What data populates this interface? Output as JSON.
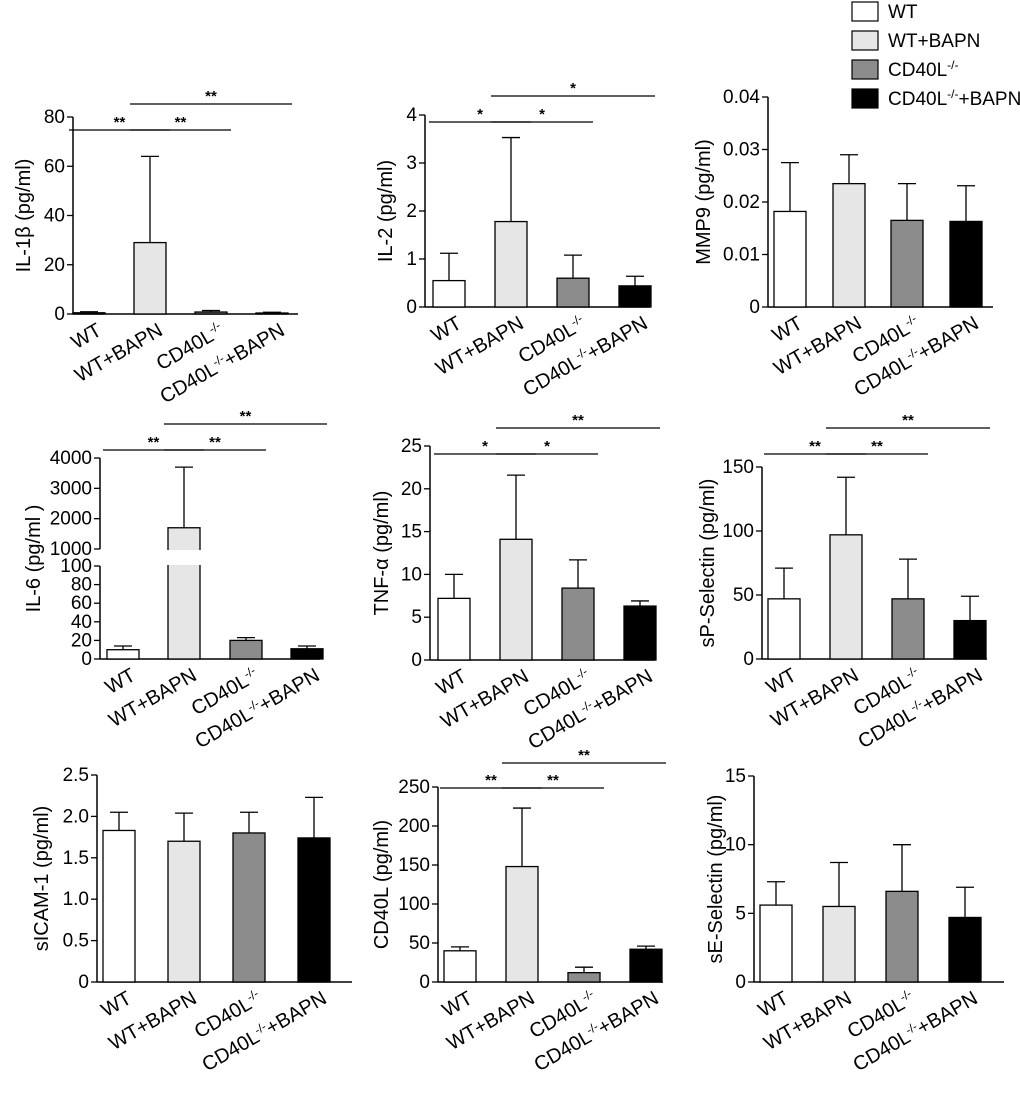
{
  "legend": [
    {
      "label": "WT",
      "sup": "",
      "post": "",
      "color": "#ffffff"
    },
    {
      "label": "WT+BAPN",
      "sup": "",
      "post": "",
      "color": "#e6e6e6"
    },
    {
      "label": "CD40L",
      "sup": "-/-",
      "post": "",
      "color": "#8c8c8c"
    },
    {
      "label": "CD40L",
      "sup": "-/-",
      "post": "+BAPN",
      "color": "#000000"
    }
  ],
  "categories": [
    {
      "label": "WT",
      "sup": "",
      "post": ""
    },
    {
      "label": "WT+BAPN",
      "sup": "",
      "post": ""
    },
    {
      "label": "CD40L",
      "sup": "-/-",
      "post": ""
    },
    {
      "label": "CD40L",
      "sup": "-/-",
      "post": "+BAPN"
    }
  ],
  "colors": [
    "#ffffff",
    "#e6e6e6",
    "#8c8c8c",
    "#000000"
  ],
  "chart_data": [
    {
      "type": "bar",
      "id": "il1b",
      "ylabel": "IL-1β (pg/ml)",
      "ylim": [
        0,
        80
      ],
      "yticks": [
        "0",
        "20",
        "40",
        "60",
        "80"
      ],
      "values": [
        0.5,
        29,
        0.8,
        0.4
      ],
      "errors": [
        0.4,
        35,
        0.6,
        0.3
      ],
      "sig": [
        {
          "from": 0,
          "to": 1,
          "label": "**"
        },
        {
          "from": 1,
          "to": 2,
          "label": "**"
        },
        {
          "from": 1,
          "to": 3,
          "label": "**"
        }
      ]
    },
    {
      "type": "bar",
      "id": "il2",
      "ylabel": "IL-2 (pg/ml)",
      "ylim": [
        0,
        4
      ],
      "yticks": [
        "0",
        "1",
        "2",
        "3",
        "4"
      ],
      "values": [
        0.55,
        1.78,
        0.6,
        0.44
      ],
      "errors": [
        0.57,
        1.75,
        0.48,
        0.2
      ],
      "sig": [
        {
          "from": 0,
          "to": 1,
          "label": "*"
        },
        {
          "from": 1,
          "to": 2,
          "label": "*"
        },
        {
          "from": 1,
          "to": 3,
          "label": "*"
        }
      ]
    },
    {
      "type": "bar",
      "id": "mmp9",
      "ylabel": "MMP9 (pg/ml)",
      "ylim": [
        0,
        0.04
      ],
      "yticks": [
        "0",
        "0.01",
        "0.02",
        "0.03",
        "0.04"
      ],
      "values": [
        0.0182,
        0.0235,
        0.0165,
        0.0163
      ],
      "errors": [
        0.0093,
        0.0055,
        0.007,
        0.0068
      ],
      "sig": []
    },
    {
      "type": "bar",
      "id": "il6",
      "ylabel": "IL-6 (pg/ml )",
      "broken_axis": true,
      "lower_ylim": [
        0,
        100
      ],
      "lower_yticks": [
        "0",
        "20",
        "40",
        "60",
        "80",
        "100"
      ],
      "upper_ylim": [
        1000,
        4000
      ],
      "upper_yticks": [
        "1000",
        "2000",
        "3000",
        "4000"
      ],
      "values": [
        10,
        1700,
        20,
        11
      ],
      "errors": [
        4,
        2000,
        3,
        3
      ],
      "sig": [
        {
          "from": 0,
          "to": 1,
          "label": "**"
        },
        {
          "from": 1,
          "to": 2,
          "label": "**"
        },
        {
          "from": 1,
          "to": 3,
          "label": "**"
        }
      ]
    },
    {
      "type": "bar",
      "id": "tnfa",
      "ylabel": "TNF-α (pg/ml)",
      "ylim": [
        0,
        25
      ],
      "yticks": [
        "0",
        "5",
        "10",
        "15",
        "20",
        "25"
      ],
      "values": [
        7.2,
        14.1,
        8.4,
        6.3
      ],
      "errors": [
        2.8,
        7.5,
        3.3,
        0.6
      ],
      "sig": [
        {
          "from": 0,
          "to": 1,
          "label": "*"
        },
        {
          "from": 1,
          "to": 2,
          "label": "*"
        },
        {
          "from": 1,
          "to": 3,
          "label": "**"
        }
      ]
    },
    {
      "type": "bar",
      "id": "spsel",
      "ylabel": "sP-Selectin (pg/ml)",
      "ylim": [
        0,
        150
      ],
      "yticks": [
        "0",
        "50",
        "100",
        "150"
      ],
      "values": [
        47,
        97,
        47,
        30
      ],
      "errors": [
        24,
        45,
        31,
        19
      ],
      "sig": [
        {
          "from": 0,
          "to": 1,
          "label": "**"
        },
        {
          "from": 1,
          "to": 2,
          "label": "**"
        },
        {
          "from": 1,
          "to": 3,
          "label": "**"
        }
      ]
    },
    {
      "type": "bar",
      "id": "sicam",
      "ylabel": "sICAM-1 (pg/ml)",
      "ylim": [
        0,
        2.5
      ],
      "yticks": [
        "0",
        "0.5",
        "1.0",
        "1.5",
        "2.0",
        "2.5"
      ],
      "values": [
        1.83,
        1.7,
        1.8,
        1.74
      ],
      "errors": [
        0.22,
        0.34,
        0.25,
        0.49
      ],
      "sig": []
    },
    {
      "type": "bar",
      "id": "cd40l",
      "ylabel": "CD40L (pg/ml)",
      "ylim": [
        0,
        250
      ],
      "yticks": [
        "0",
        "50",
        "100",
        "150",
        "200",
        "250"
      ],
      "values": [
        40,
        148,
        12,
        42
      ],
      "errors": [
        5,
        75,
        7,
        4
      ],
      "sig": [
        {
          "from": 0,
          "to": 1,
          "label": "**"
        },
        {
          "from": 1,
          "to": 2,
          "label": "**"
        },
        {
          "from": 1,
          "to": 3,
          "label": "**"
        }
      ]
    },
    {
      "type": "bar",
      "id": "sesel",
      "ylabel": "sE-Selectin (pg/ml)",
      "ylim": [
        0,
        15
      ],
      "yticks": [
        "0",
        "5",
        "10",
        "15"
      ],
      "values": [
        5.6,
        5.5,
        6.6,
        4.7
      ],
      "errors": [
        1.7,
        3.2,
        3.4,
        2.2
      ],
      "sig": []
    }
  ]
}
